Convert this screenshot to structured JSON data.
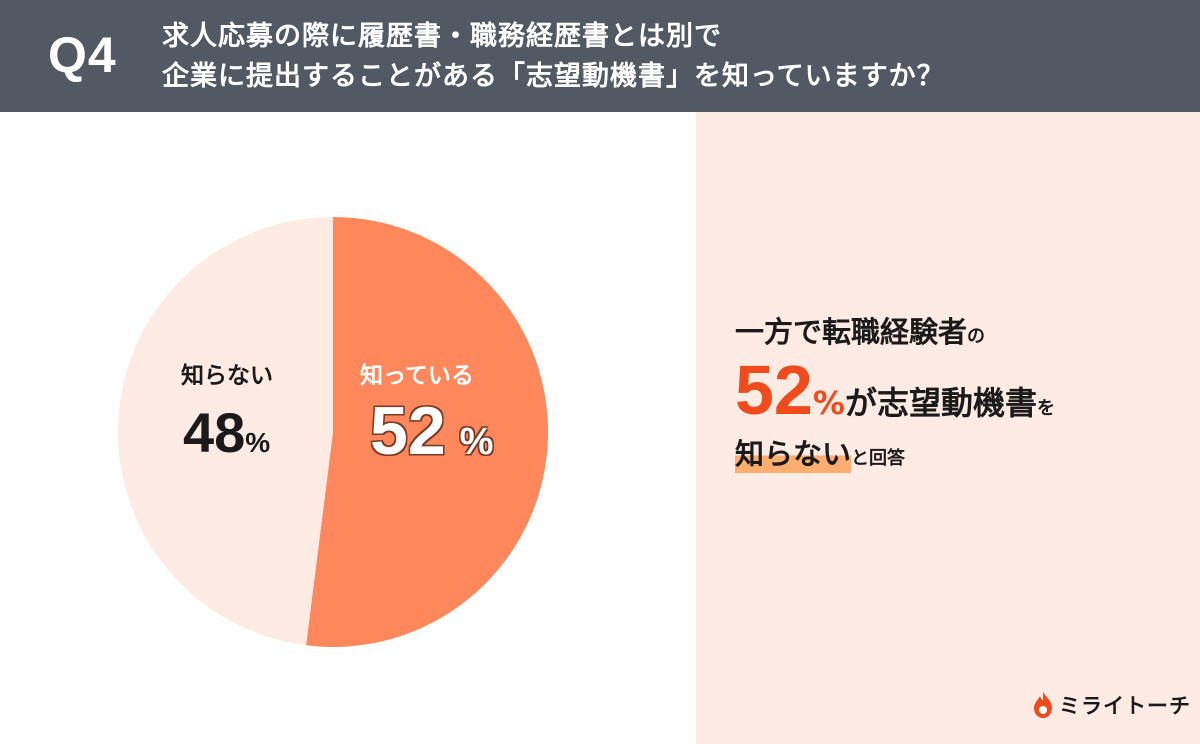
{
  "header": {
    "q_number": "Q4",
    "question_line1": "求人応募の際に履歴書・職務経歴書とは別で",
    "question_line2": "企業に提出することがある「志望動機書」を知っていますか？"
  },
  "chart_data": {
    "type": "pie",
    "slices": [
      {
        "label": "知っている",
        "value": 52,
        "color": "#ff875c"
      },
      {
        "label": "知らない",
        "value": 48,
        "color": "#fdebe4"
      }
    ],
    "unit": "%"
  },
  "labels": {
    "yes_label": "知っている",
    "yes_value": "52",
    "no_label": "知らない",
    "no_value": "48",
    "percent": "%"
  },
  "summary": {
    "line1_main": "一方で転職経験者",
    "line1_particle": "の",
    "line2_value": "52",
    "line2_percent": "%",
    "line2_main": "が志望動機書",
    "line2_particle": "を",
    "line3_highlight": "知らない",
    "line3_rest": "と回答"
  },
  "brand": {
    "name": "ミライトーチ",
    "icon": "flame-icon",
    "accent": "#ef4b1c"
  },
  "colors": {
    "header_bg": "#525965",
    "right_panel_bg": "#fdebe4",
    "pie_yes": "#ff875c",
    "pie_no": "#fdebe4",
    "highlight": "#fbae70"
  }
}
